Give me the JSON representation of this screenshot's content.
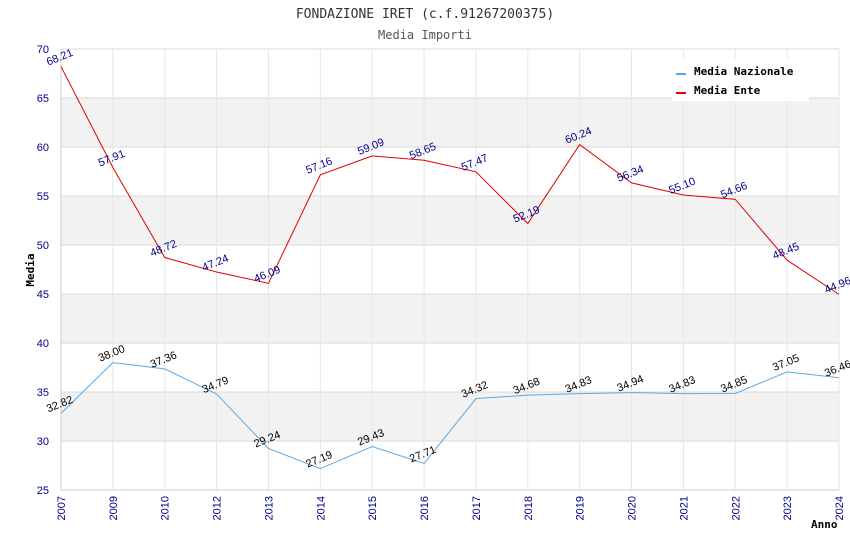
{
  "chart_data": {
    "type": "line",
    "title": "FONDAZIONE IRET (c.f.91267200375)",
    "subtitle": "Media Importi",
    "xlabel": "Anno",
    "ylabel": "Media",
    "categories": [
      "2007",
      "2009",
      "2010",
      "2012",
      "2013",
      "2014",
      "2015",
      "2016",
      "2017",
      "2018",
      "2019",
      "2020",
      "2021",
      "2022",
      "2023",
      "2024"
    ],
    "ylim": [
      25,
      70
    ],
    "yticks": [
      25,
      30,
      35,
      40,
      45,
      50,
      55,
      60,
      65,
      70
    ],
    "grid": true,
    "legend_position": "top-right",
    "series": [
      {
        "name": "Media Nazionale",
        "color": "#5aa9e6",
        "label_color": "#000000",
        "values": [
          32.82,
          38.0,
          37.36,
          34.79,
          29.24,
          27.19,
          29.43,
          27.71,
          34.32,
          34.68,
          34.83,
          34.94,
          34.83,
          34.85,
          37.05,
          36.46
        ],
        "labels": [
          "32.82",
          "38.00",
          "37.36",
          "34.79",
          "29.24",
          "27.19",
          "29.43",
          "27.71",
          "34.32",
          "34.68",
          "34.83",
          "34.94",
          "34.83",
          "34.85",
          "37.05",
          "36.46"
        ]
      },
      {
        "name": "Media Ente",
        "color": "#e00000",
        "label_color": "#00008b",
        "values": [
          68.21,
          57.91,
          48.72,
          47.24,
          46.09,
          57.16,
          59.09,
          58.65,
          57.47,
          52.19,
          60.24,
          56.34,
          55.1,
          54.66,
          48.45,
          44.96
        ],
        "labels": [
          "68.21",
          "57.91",
          "48.72",
          "47.24",
          "46.09",
          "57.16",
          "59.09",
          "58.65",
          "57.47",
          "52.19",
          "60.24",
          "56.34",
          "55.10",
          "54.66",
          "48.45",
          "44.96"
        ]
      }
    ]
  }
}
